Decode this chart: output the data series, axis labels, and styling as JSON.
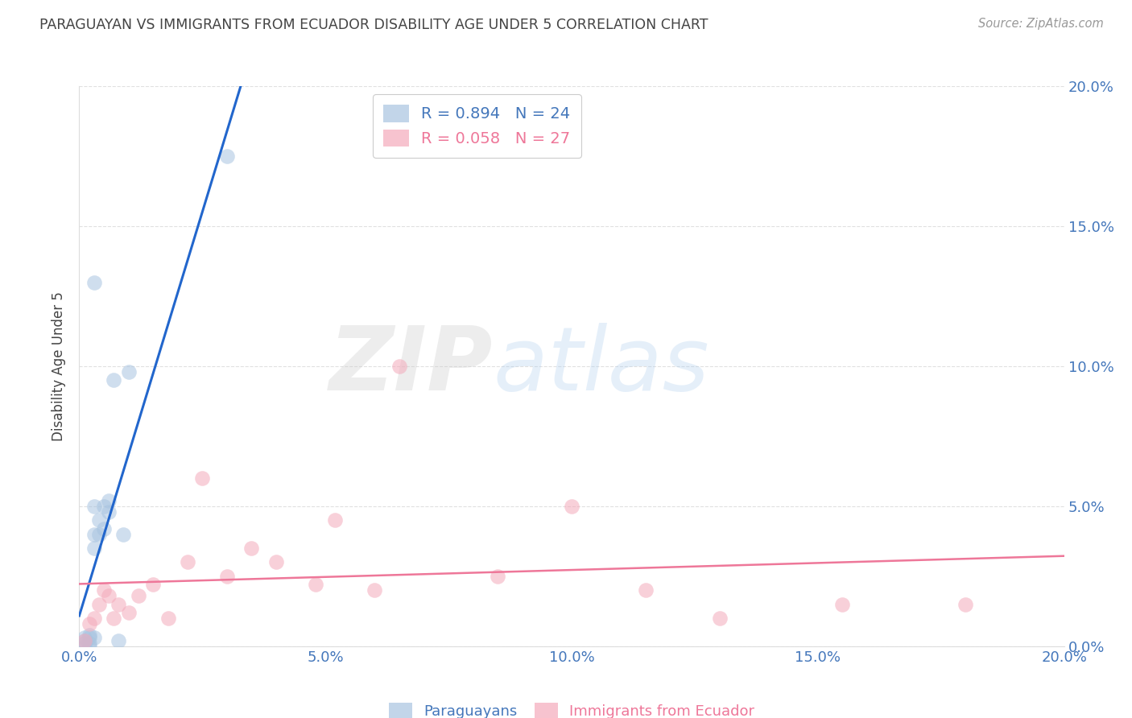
{
  "title": "PARAGUAYAN VS IMMIGRANTS FROM ECUADOR DISABILITY AGE UNDER 5 CORRELATION CHART",
  "source": "Source: ZipAtlas.com",
  "ylabel": "Disability Age Under 5",
  "watermark_zip": "ZIP",
  "watermark_atlas": "atlas",
  "xlim": [
    0.0,
    0.2
  ],
  "ylim": [
    0.0,
    0.2
  ],
  "xtick_vals": [
    0.0,
    0.05,
    0.1,
    0.15,
    0.2
  ],
  "ytick_vals": [
    0.0,
    0.05,
    0.1,
    0.15,
    0.2
  ],
  "blue_R": 0.894,
  "blue_N": 24,
  "pink_R": 0.058,
  "pink_N": 27,
  "blue_dot_color": "#A8C4E0",
  "pink_dot_color": "#F4AABB",
  "blue_line_color": "#2266CC",
  "pink_line_color": "#EE7799",
  "axis_color": "#4477BB",
  "title_color": "#444444",
  "source_color": "#999999",
  "grid_color": "#DDDDDD",
  "paraguayan_x": [
    0.001,
    0.001,
    0.001,
    0.001,
    0.002,
    0.002,
    0.002,
    0.002,
    0.003,
    0.003,
    0.003,
    0.003,
    0.004,
    0.004,
    0.005,
    0.005,
    0.006,
    0.006,
    0.007,
    0.008,
    0.009,
    0.01,
    0.003,
    0.03
  ],
  "paraguayan_y": [
    0.0,
    0.001,
    0.002,
    0.003,
    0.0,
    0.001,
    0.003,
    0.004,
    0.003,
    0.035,
    0.04,
    0.05,
    0.04,
    0.045,
    0.042,
    0.05,
    0.048,
    0.052,
    0.095,
    0.002,
    0.04,
    0.098,
    0.13,
    0.175
  ],
  "ecuador_x": [
    0.001,
    0.002,
    0.003,
    0.004,
    0.005,
    0.006,
    0.007,
    0.008,
    0.01,
    0.012,
    0.015,
    0.018,
    0.022,
    0.025,
    0.03,
    0.035,
    0.04,
    0.048,
    0.052,
    0.06,
    0.065,
    0.085,
    0.1,
    0.115,
    0.13,
    0.155,
    0.18
  ],
  "ecuador_y": [
    0.002,
    0.008,
    0.01,
    0.015,
    0.02,
    0.018,
    0.01,
    0.015,
    0.012,
    0.018,
    0.022,
    0.01,
    0.03,
    0.06,
    0.025,
    0.035,
    0.03,
    0.022,
    0.045,
    0.02,
    0.1,
    0.025,
    0.05,
    0.02,
    0.01,
    0.015,
    0.015
  ]
}
